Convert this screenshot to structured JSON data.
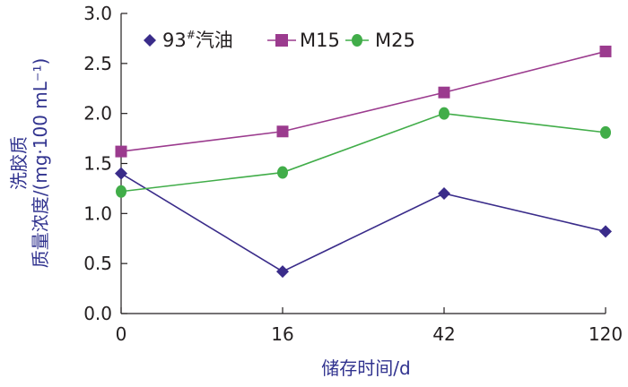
{
  "chart_data": {
    "type": "line",
    "categories": [
      "0",
      "16",
      "42",
      "120"
    ],
    "ylim": [
      0,
      3
    ],
    "yticks": [
      "0.0",
      "0.5",
      "1.0",
      "1.5",
      "2.0",
      "2.5",
      "3.0"
    ],
    "xlabel": "储存时间/d",
    "ylabel_line1": "洗胶质",
    "ylabel_line2": "质量浓度/(mg·100 mL⁻¹)",
    "legend_position": "top",
    "grid": false,
    "series": [
      {
        "name": "93#汽油",
        "name_base": "93",
        "name_sup": "#",
        "name_tail": "汽油",
        "values": [
          1.4,
          0.42,
          1.2,
          0.82
        ],
        "color": "#3a2c8a",
        "marker": "diamond"
      },
      {
        "name": "M15",
        "values": [
          1.62,
          1.82,
          2.21,
          2.62
        ],
        "color": "#9b3b8e",
        "marker": "square"
      },
      {
        "name": "M25",
        "values": [
          1.22,
          1.41,
          2.0,
          1.81
        ],
        "color": "#41ad49",
        "marker": "circle"
      }
    ]
  }
}
